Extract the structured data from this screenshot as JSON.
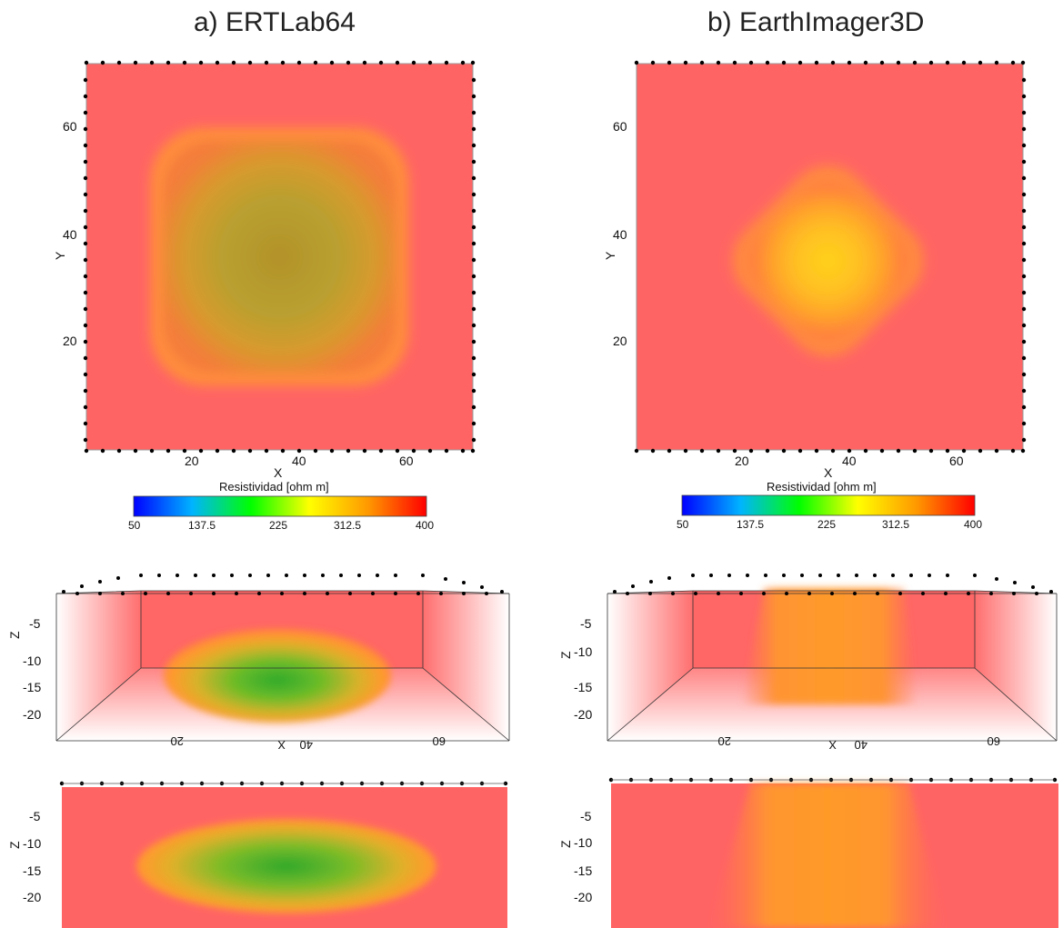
{
  "panels": [
    {
      "title": "a) ERTLab64",
      "map_view": {
        "x_label": "X",
        "y_label": "Y",
        "x_ticks": [
          "20",
          "40",
          "60"
        ],
        "y_ticks": [
          "60",
          "40",
          "20"
        ]
      },
      "colorbar": {
        "label": "Resistividad [ohm m]",
        "ticks": [
          "50",
          "137.5",
          "225",
          "312.5",
          "400"
        ]
      },
      "oblique_view": {
        "z_label": "Z",
        "x_label": "X",
        "z_ticks": [
          "-5",
          "-10",
          "-15",
          "-20"
        ],
        "x_ticks": [
          "20",
          "40",
          "60"
        ]
      },
      "section_view": {
        "z_label": "Z",
        "z_ticks": [
          "-5",
          "-10",
          "-15",
          "-20"
        ]
      }
    },
    {
      "title": "b) EarthImager3D",
      "map_view": {
        "x_label": "X",
        "y_label": "Y",
        "x_ticks": [
          "20",
          "40",
          "60"
        ],
        "y_ticks": [
          "60",
          "40",
          "20"
        ]
      },
      "colorbar": {
        "label": "Resistividad [ohm m]",
        "ticks": [
          "50",
          "137.5",
          "225",
          "312.5",
          "400"
        ]
      },
      "oblique_view": {
        "z_label": "Z",
        "x_label": "X",
        "z_ticks": [
          "-5",
          "-10",
          "-15",
          "-20"
        ],
        "x_ticks": [
          "20",
          "40",
          "60"
        ]
      },
      "section_view": {
        "z_label": "Z",
        "z_ticks": [
          "-5",
          "-10",
          "-15",
          "-20"
        ]
      }
    }
  ],
  "colors": {
    "background_red": "#ff6464",
    "colorbar_stops": [
      "#0000ff",
      "#00c8ff",
      "#00ff00",
      "#ffff00",
      "#ff9900",
      "#ff0000"
    ]
  }
}
